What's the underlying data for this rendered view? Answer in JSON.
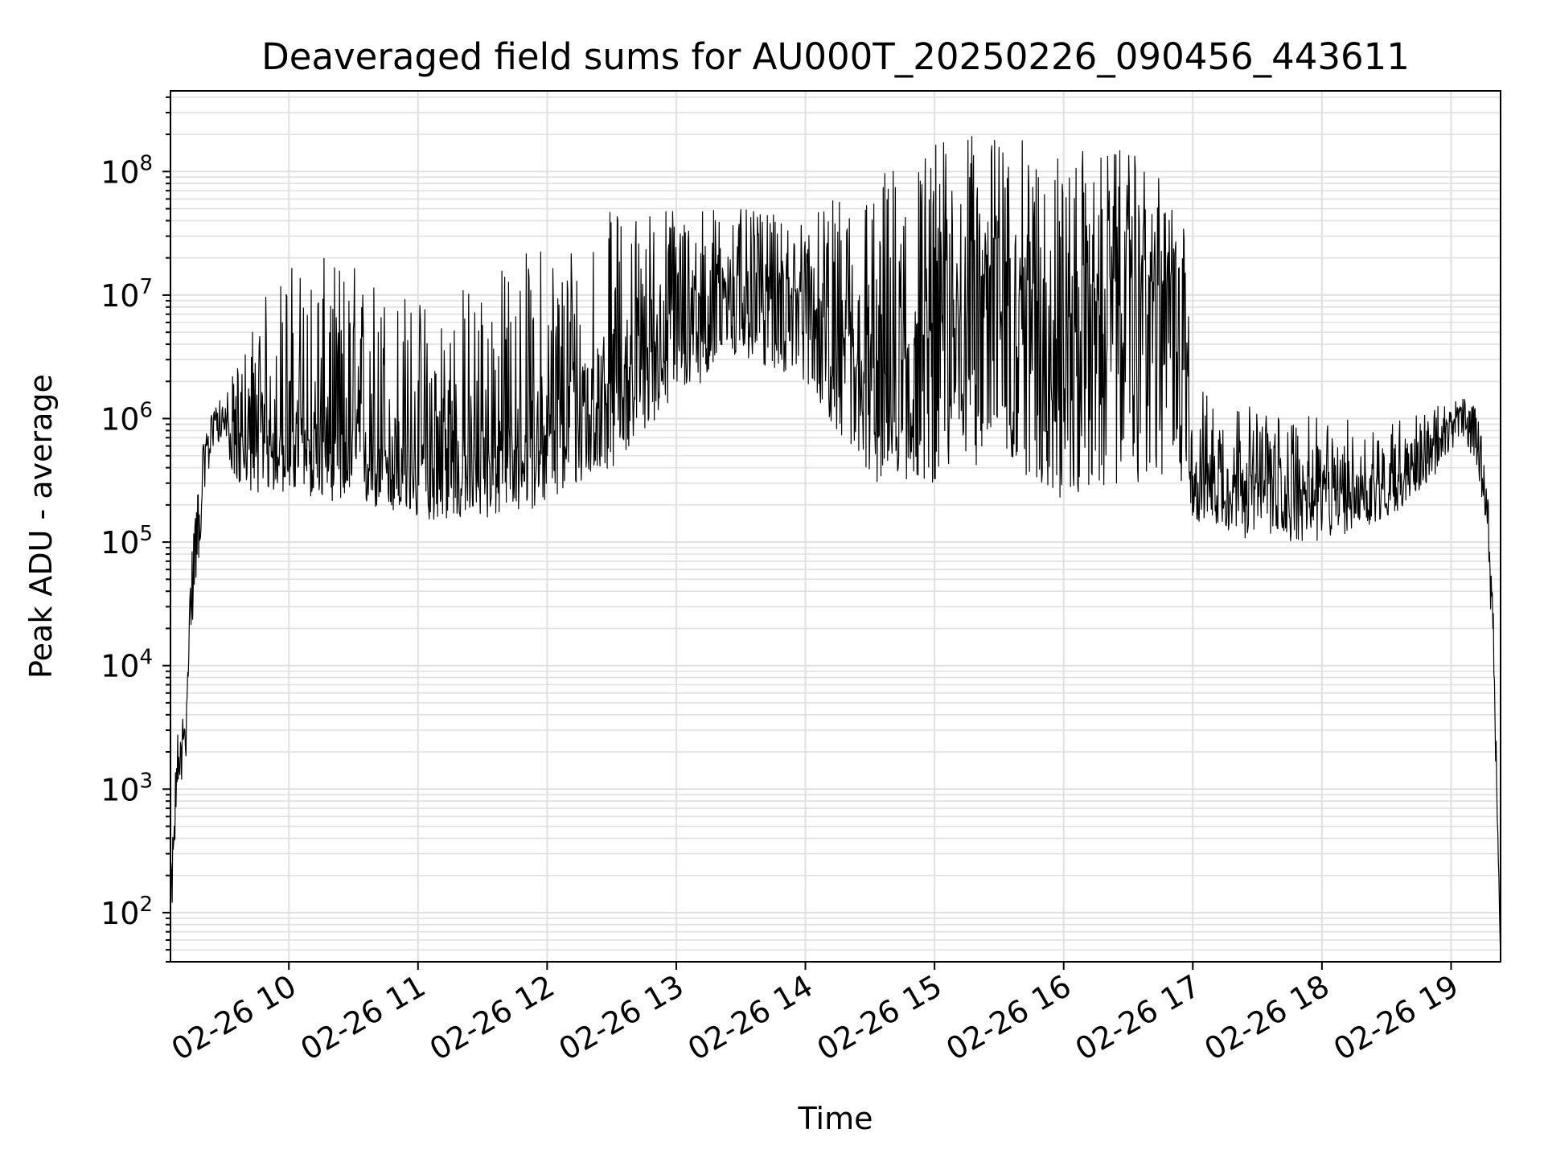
{
  "chart_data": {
    "type": "line",
    "title": "Deaveraged field sums for AU000T_20250226_090456_443611",
    "xlabel": "Time",
    "ylabel": "Peak ADU - average",
    "yscale": "log",
    "ylim": [
      40,
      450000000
    ],
    "xlim": [
      "2025-02-26 09:05",
      "2025-02-26 19:23"
    ],
    "grid": true,
    "x_tick_labels": [
      "02-26 10",
      "02-26 11",
      "02-26 12",
      "02-26 13",
      "02-26 14",
      "02-26 15",
      "02-26 16",
      "02-26 17",
      "02-26 18",
      "02-26 19"
    ],
    "y_tick_labels": [
      {
        "base": "10",
        "exp": "2"
      },
      {
        "base": "10",
        "exp": "3"
      },
      {
        "base": "10",
        "exp": "4"
      },
      {
        "base": "10",
        "exp": "5"
      },
      {
        "base": "10",
        "exp": "6"
      },
      {
        "base": "10",
        "exp": "7"
      },
      {
        "base": "10",
        "exp": "8"
      }
    ],
    "line_color": "#000000",
    "grid_color": "#e0e0e0",
    "envelope": {
      "x": [
        "2025-02-26 09:05",
        "2025-02-26 09:08",
        "2025-02-26 09:12",
        "2025-02-26 09:15",
        "2025-02-26 09:20",
        "2025-02-26 09:25",
        "2025-02-26 09:30",
        "2025-02-26 09:35",
        "2025-02-26 09:45",
        "2025-02-26 10:00",
        "2025-02-26 10:30",
        "2025-02-26 11:00",
        "2025-02-26 11:30",
        "2025-02-26 12:00",
        "2025-02-26 12:30",
        "2025-02-26 13:00",
        "2025-02-26 13:30",
        "2025-02-26 14:00",
        "2025-02-26 14:30",
        "2025-02-26 15:00",
        "2025-02-26 15:30",
        "2025-02-26 16:00",
        "2025-02-26 16:30",
        "2025-02-26 16:55",
        "2025-02-26 17:00",
        "2025-02-26 17:30",
        "2025-02-26 18:00",
        "2025-02-26 18:30",
        "2025-02-26 18:50",
        "2025-02-26 19:05",
        "2025-02-26 19:12",
        "2025-02-26 19:17",
        "2025-02-26 19:20",
        "2025-02-26 19:23"
      ],
      "low": [
        60,
        800,
        1500,
        20000,
        150000,
        600000,
        700000,
        300000,
        250000,
        250000,
        200000,
        150000,
        150000,
        200000,
        400000,
        1500000,
        3000000,
        2000000,
        300000,
        300000,
        500000,
        200000,
        300000,
        300000,
        150000,
        100000,
        100000,
        150000,
        300000,
        700000,
        400000,
        120000,
        5000,
        40
      ],
      "mid": [
        80,
        1500,
        3000,
        80000,
        400000,
        1100000,
        1000000,
        600000,
        700000,
        700000,
        600000,
        400000,
        500000,
        700000,
        2000000,
        6000000,
        15000000,
        10000000,
        1500000,
        5000000,
        20000000,
        5000000,
        15000000,
        10000000,
        400000,
        300000,
        250000,
        300000,
        500000,
        1200000,
        1000000,
        200000,
        10000,
        40
      ],
      "high": [
        200,
        3000,
        5000,
        100000,
        600000,
        1300000,
        1500000,
        2500000,
        8000000,
        20000000,
        20000000,
        10000000,
        15000000,
        30000000,
        50000000,
        60000000,
        50000000,
        40000000,
        100000000,
        200000000,
        200000000,
        150000000,
        150000000,
        60000000,
        2000000,
        1200000,
        1000000,
        1000000,
        1200000,
        1500000,
        1300000,
        300000,
        20000,
        40
      ]
    }
  }
}
